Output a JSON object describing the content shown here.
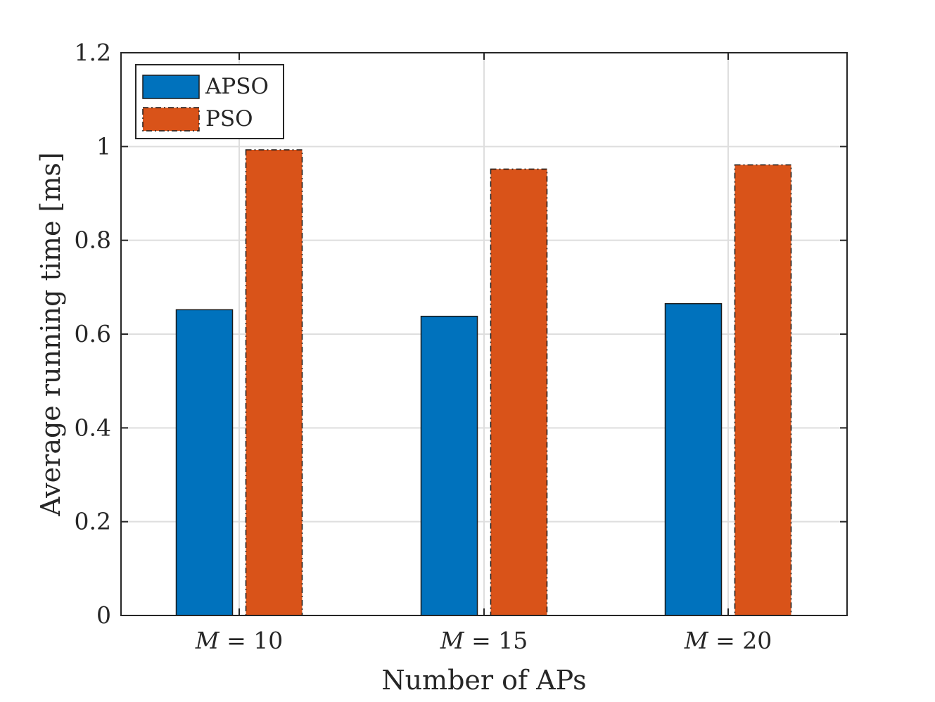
{
  "chart_data": {
    "type": "bar",
    "categories": [
      "M = 10",
      "M = 15",
      "M = 20"
    ],
    "category_parts": [
      {
        "var": "M",
        "op": "=",
        "num": "10"
      },
      {
        "var": "M",
        "op": "=",
        "num": "15"
      },
      {
        "var": "M",
        "op": "=",
        "num": "20"
      }
    ],
    "series": [
      {
        "name": "APSO",
        "values": [
          0.652,
          0.638,
          0.665
        ],
        "color": "#0072BD",
        "line_style": "solid"
      },
      {
        "name": "PSO",
        "values": [
          0.993,
          0.952,
          0.961
        ],
        "color": "#D95319",
        "line_style": "dashdot"
      }
    ],
    "xlabel": "Number of APs",
    "ylabel": "Average running time [ms]",
    "ylim": [
      0,
      1.2
    ],
    "yticks": [
      "0",
      "0.2",
      "0.4",
      "0.6",
      "0.8",
      "1",
      "1.2"
    ],
    "ytick_values": [
      0,
      0.2,
      0.4,
      0.6,
      0.8,
      1.0,
      1.2
    ],
    "grid": true,
    "legend_position": "top-left"
  }
}
